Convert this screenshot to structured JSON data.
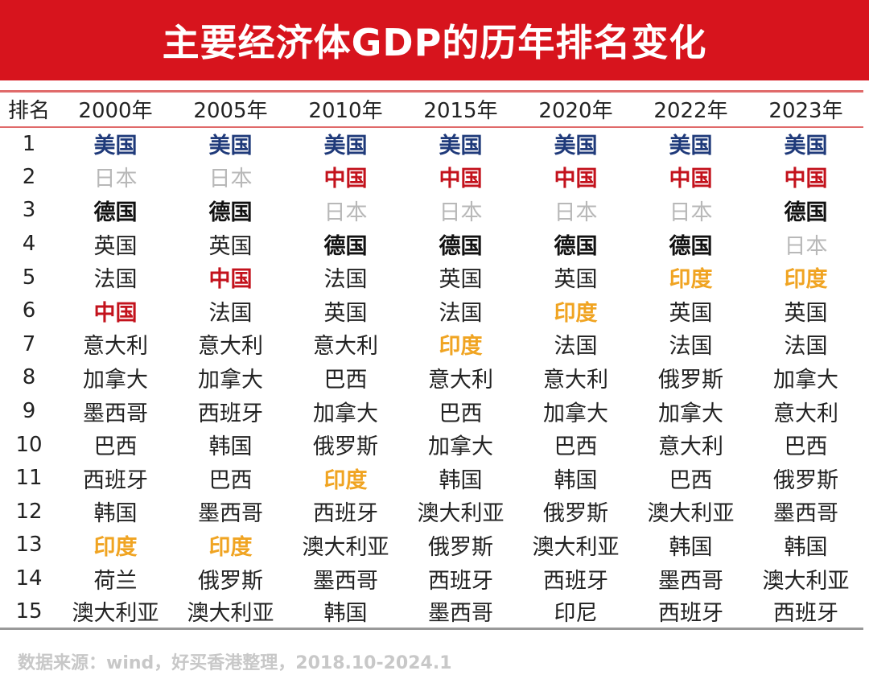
{
  "header": {
    "title": "主要经济体GDP的历年排名变化"
  },
  "chart_data": {
    "type": "table",
    "title": "主要经济体GDP的历年排名变化",
    "columns": [
      "排名",
      "2000年",
      "2005年",
      "2010年",
      "2015年",
      "2020年",
      "2022年",
      "2023年"
    ],
    "rows": [
      [
        "1",
        "美国",
        "美国",
        "美国",
        "美国",
        "美国",
        "美国",
        "美国"
      ],
      [
        "2",
        "日本",
        "日本",
        "中国",
        "中国",
        "中国",
        "中国",
        "中国"
      ],
      [
        "3",
        "德国",
        "德国",
        "日本",
        "日本",
        "日本",
        "日本",
        "德国"
      ],
      [
        "4",
        "英国",
        "英国",
        "德国",
        "德国",
        "德国",
        "德国",
        "日本"
      ],
      [
        "5",
        "法国",
        "中国",
        "法国",
        "英国",
        "英国",
        "印度",
        "印度"
      ],
      [
        "6",
        "中国",
        "法国",
        "英国",
        "法国",
        "印度",
        "英国",
        "英国"
      ],
      [
        "7",
        "意大利",
        "意大利",
        "意大利",
        "印度",
        "法国",
        "法国",
        "法国"
      ],
      [
        "8",
        "加拿大",
        "加拿大",
        "巴西",
        "意大利",
        "意大利",
        "俄罗斯",
        "加拿大"
      ],
      [
        "9",
        "墨西哥",
        "西班牙",
        "加拿大",
        "巴西",
        "加拿大",
        "加拿大",
        "意大利"
      ],
      [
        "10",
        "巴西",
        "韩国",
        "俄罗斯",
        "加拿大",
        "巴西",
        "意大利",
        "巴西"
      ],
      [
        "11",
        "西班牙",
        "巴西",
        "印度",
        "韩国",
        "韩国",
        "巴西",
        "俄罗斯"
      ],
      [
        "12",
        "韩国",
        "墨西哥",
        "西班牙",
        "澳大利亚",
        "俄罗斯",
        "澳大利亚",
        "墨西哥"
      ],
      [
        "13",
        "印度",
        "印度",
        "澳大利亚",
        "俄罗斯",
        "澳大利亚",
        "韩国",
        "韩国"
      ],
      [
        "14",
        "荷兰",
        "俄罗斯",
        "墨西哥",
        "西班牙",
        "西班牙",
        "墨西哥",
        "澳大利亚"
      ],
      [
        "15",
        "澳大利亚",
        "澳大利亚",
        "韩国",
        "墨西哥",
        "印尼",
        "西班牙",
        "西班牙"
      ]
    ],
    "highlight_colors": {
      "美国": "#1f3a7a",
      "中国": "#c3121c",
      "日本": "#b8b8b8",
      "德国": "#111111",
      "印度": "#f0a422"
    }
  },
  "footer": {
    "source": "数据来源：wind，好买香港整理，2018.10-2024.1"
  }
}
